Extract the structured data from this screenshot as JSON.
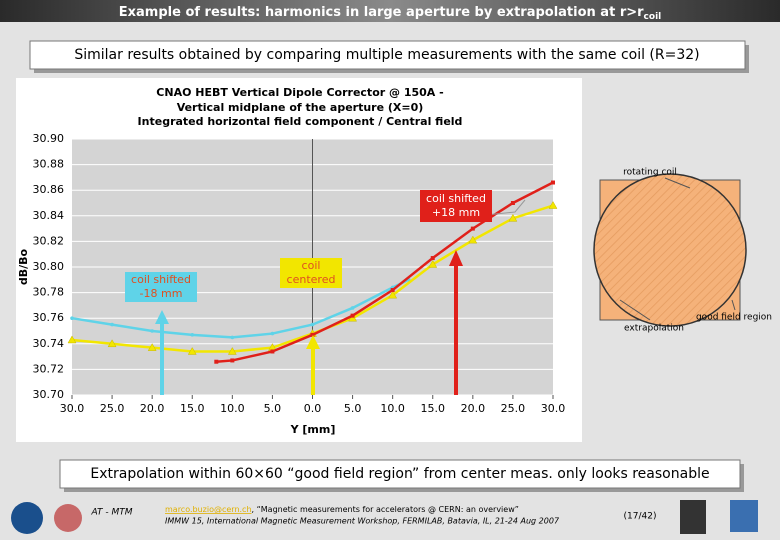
{
  "header": {
    "title": "Example of results: harmonics in large aperture by extrapolation at r>r",
    "subscript": "coil"
  },
  "banner_top": "Similar results obtained by comparing multiple measurements with the same coil (R=32)",
  "banner_bottom": "Extrapolation within 60×60 “good field region” from center meas. only looks reasonable",
  "chart_data": {
    "type": "line",
    "title": "CNAO HEBT Vertical Dipole Corrector @ 150A -",
    "subtitles": [
      "Vertical midplane of the aperture (X=0)",
      "Integrated horizontal field component / Central field"
    ],
    "x_label": "Y [mm]",
    "y_label": "dB/Bo",
    "xlim": [
      -30,
      30
    ],
    "ylim": [
      30.7,
      30.9
    ],
    "xticks": [
      {
        "value": -30,
        "label": "30.0"
      },
      {
        "value": -25,
        "label": "25.0"
      },
      {
        "value": -20,
        "label": "20.0"
      },
      {
        "value": -15,
        "label": "15.0"
      },
      {
        "value": -10,
        "label": "10.0"
      },
      {
        "value": -5,
        "label": "5.0"
      },
      {
        "value": 0,
        "label": "0.0"
      },
      {
        "value": 5,
        "label": "5.0"
      },
      {
        "value": 10,
        "label": "10.0"
      },
      {
        "value": 15,
        "label": "15.0"
      },
      {
        "value": 20,
        "label": "20.0"
      },
      {
        "value": 25,
        "label": "25.0"
      },
      {
        "value": 30,
        "label": "30.0"
      }
    ],
    "yticks": [
      {
        "value": 30.7,
        "label": "30.70"
      },
      {
        "value": 30.72,
        "label": "30.72"
      },
      {
        "value": 30.74,
        "label": "30.74"
      },
      {
        "value": 30.76,
        "label": "30.76"
      },
      {
        "value": 30.78,
        "label": "30.78"
      },
      {
        "value": 30.8,
        "label": "30.80"
      },
      {
        "value": 30.82,
        "label": "30.82"
      },
      {
        "value": 30.84,
        "label": "30.84"
      },
      {
        "value": 30.86,
        "label": "30.86"
      },
      {
        "value": 30.88,
        "label": "30.88"
      },
      {
        "value": 30.9,
        "label": "30.90"
      }
    ],
    "grid": true,
    "series": [
      {
        "color": "#5fd3e8",
        "marker": "circle",
        "x": [
          -30,
          -25,
          -20,
          -15,
          -10,
          -5,
          0,
          5,
          10,
          12
        ],
        "values": [
          30.76,
          30.755,
          30.75,
          30.747,
          30.745,
          30.748,
          30.755,
          30.768,
          30.784,
          30.79
        ]
      },
      {
        "color": "#f2e600",
        "marker": "triangle",
        "x": [
          -30,
          -25,
          -20,
          -15,
          -10,
          -5,
          0,
          5,
          10,
          15,
          20,
          25,
          30
        ],
        "values": [
          30.743,
          30.74,
          30.737,
          30.734,
          30.734,
          30.737,
          30.748,
          30.76,
          30.778,
          30.802,
          30.821,
          30.838,
          30.848
        ]
      },
      {
        "color": "#e0201a",
        "marker": "square",
        "x": [
          -12,
          -10,
          -5,
          0,
          5,
          10,
          15,
          20,
          25,
          30
        ],
        "values": [
          30.726,
          30.727,
          30.734,
          30.747,
          30.762,
          30.782,
          30.807,
          30.83,
          30.85,
          30.866
        ]
      }
    ],
    "annotations": [
      {
        "lines": [
          "coil shifted",
          "+18 mm"
        ]
      },
      {
        "lines": [
          "coil",
          "centered"
        ]
      },
      {
        "lines": [
          "coil shifted",
          "-18 mm"
        ]
      }
    ]
  },
  "diagram": {
    "coil_label": "rotating coil",
    "region_label": "good field region",
    "extrapolation_label": "extrapolation"
  },
  "footer": {
    "email": "marco.buzio@cern.ch",
    "talk": ", “Magnetic measurements for accelerators @ CERN: an overview”",
    "venue": "IMMW 15, International Magnetic Measurement Workshop,  FERMILAB, Batavia, IL, 21-24 Aug 2007",
    "page": "(17/42)",
    "logo": "AT - MTM"
  }
}
